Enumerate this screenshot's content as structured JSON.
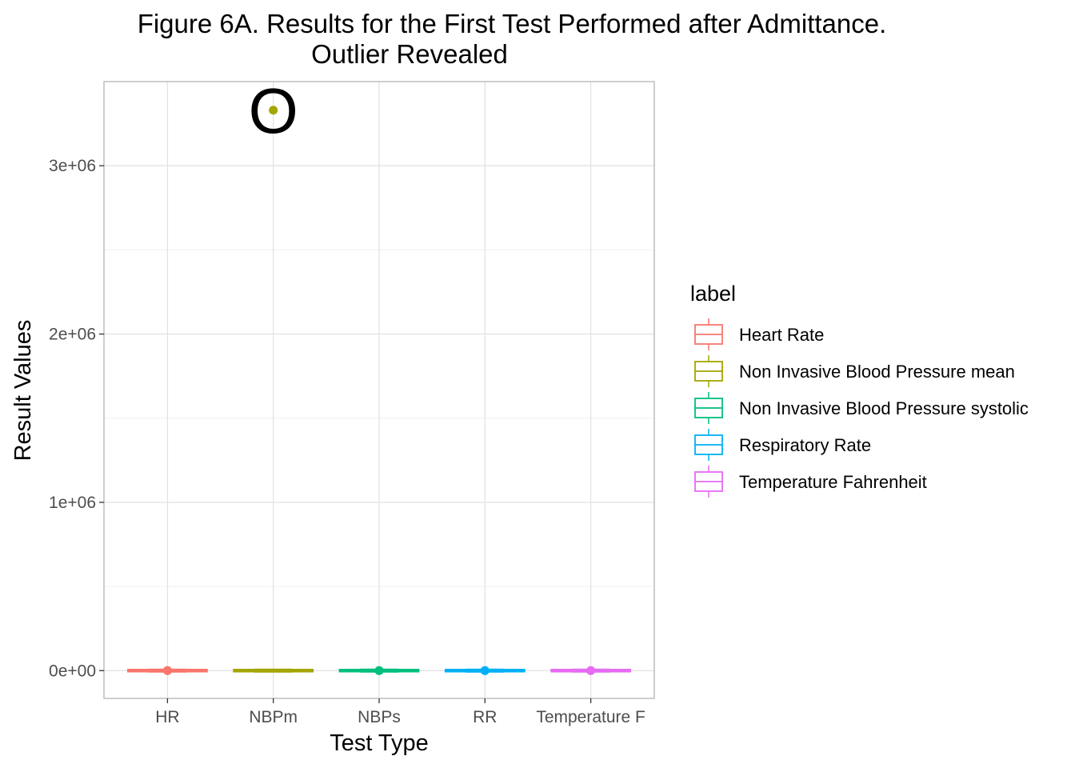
{
  "chart_data": {
    "type": "box",
    "title": "Figure 6A. Results for the First Test Performed after Admittance.",
    "subtitle": "Outlier Revealed",
    "xlabel": "Test Type",
    "ylabel": "Result Values",
    "categories": [
      "HR",
      "NBPm",
      "NBPs",
      "RR",
      "Temperature F"
    ],
    "ylim": [
      -165000,
      3500000
    ],
    "y_ticks": [
      0,
      1000000,
      2000000,
      3000000
    ],
    "y_tick_labels": [
      "0e+00",
      "1e+06",
      "2e+06",
      "3e+06"
    ],
    "grid": true,
    "legend_title": "label",
    "legend_position": "right",
    "series": [
      {
        "name": "Heart Rate",
        "category": "HR",
        "color": "#F8766D",
        "q1": 70,
        "median": 85,
        "q3": 100,
        "whisker_low": 30,
        "whisker_high": 150,
        "outliers": [
          0,
          280
        ]
      },
      {
        "name": "Non Invasive Blood Pressure mean",
        "category": "NBPm",
        "color": "#A3A500",
        "q1": 65,
        "median": 78,
        "q3": 92,
        "whisker_low": 30,
        "whisker_high": 130,
        "outliers": [
          3330000
        ]
      },
      {
        "name": "Non Invasive Blood Pressure systolic",
        "category": "NBPs",
        "color": "#00BF7D",
        "q1": 105,
        "median": 120,
        "q3": 138,
        "whisker_low": 60,
        "whisker_high": 190,
        "outliers": [
          0,
          300
        ]
      },
      {
        "name": "Respiratory Rate",
        "category": "RR",
        "color": "#00B0F6",
        "q1": 15,
        "median": 19,
        "q3": 23,
        "whisker_low": 5,
        "whisker_high": 35,
        "outliers": [
          0,
          90
        ]
      },
      {
        "name": "Temperature Fahrenheit",
        "category": "Temperature F",
        "color": "#E76BF3",
        "q1": 97.5,
        "median": 98.4,
        "q3": 99.3,
        "whisker_low": 95,
        "whisker_high": 102,
        "outliers": [
          0,
          108
        ]
      }
    ],
    "annotations": [
      {
        "text": "O",
        "category": "NBPm",
        "y": 3330000
      }
    ]
  }
}
